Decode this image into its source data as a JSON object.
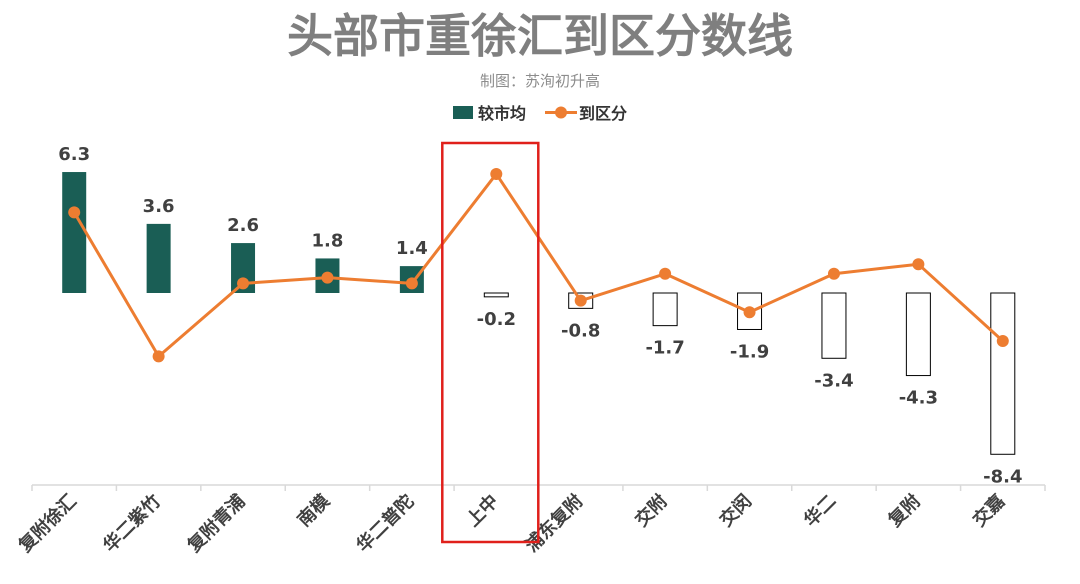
{
  "chart_data": {
    "type": "bar",
    "title": "头部市重徐汇到区分数线",
    "subtitle": "制图：苏洵初升高",
    "categories": [
      "复附徐汇",
      "华二紫竹",
      "复附青浦",
      "南模",
      "华二普陀",
      "上中",
      "浦东复附",
      "交附",
      "交闵",
      "华二",
      "复附",
      "交嘉"
    ],
    "series": [
      {
        "name": "较市均",
        "type": "bar",
        "color": "#1a5e55",
        "values": [
          6.3,
          3.6,
          2.6,
          1.8,
          1.4,
          -0.2,
          -0.8,
          -1.7,
          -1.9,
          -3.4,
          -4.3,
          -8.4
        ]
      },
      {
        "name": "到区分",
        "type": "line",
        "color": "#ed7d31",
        "values": [
          4.2,
          -3.3,
          0.5,
          0.8,
          0.5,
          6.2,
          -0.4,
          1.0,
          -1.0,
          1.0,
          1.5,
          -2.5
        ]
      }
    ],
    "highlighted_category": "上中",
    "highlight_color": "#e0201b",
    "legend_position": "top",
    "grid": false,
    "ylim": [
      -10,
      7.5
    ]
  }
}
